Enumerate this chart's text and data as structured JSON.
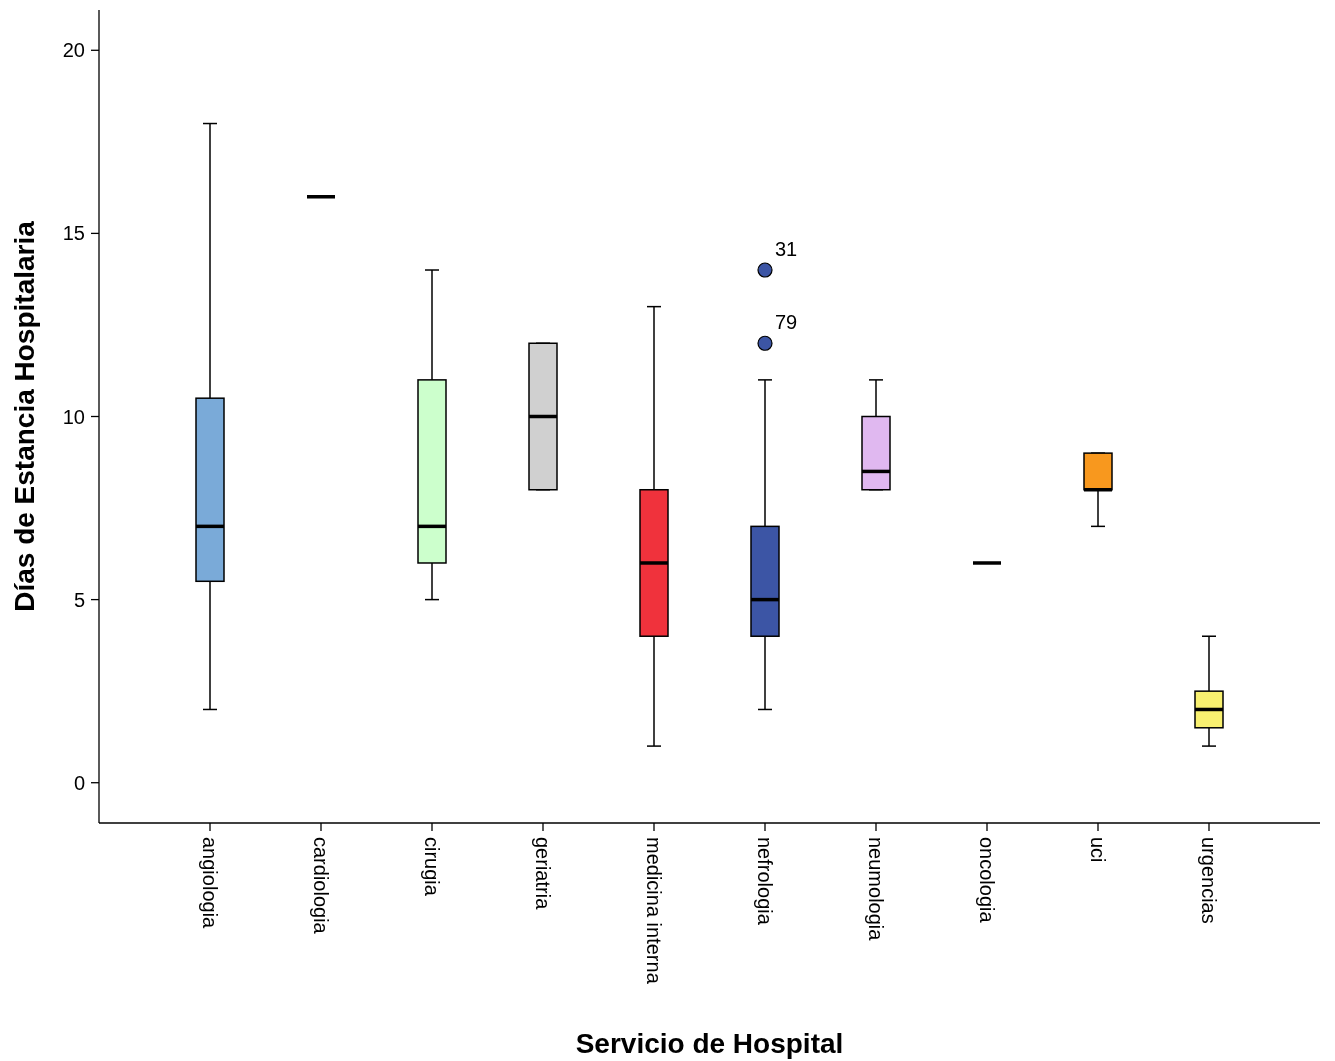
{
  "chart_data": {
    "type": "box",
    "xlabel": "Servicio de Hospital",
    "ylabel": "Días de Estancia Hospitalaria",
    "categories": [
      "angiologia",
      "cardiologia",
      "cirugia",
      "geriatria",
      "medicina interna",
      "nefrologia",
      "neumologia",
      "oncologia",
      "uci",
      "urgencias"
    ],
    "colors": [
      "#7aaad8",
      "#000000",
      "#ccffcc",
      "#d0d0d0",
      "#f0323c",
      "#3c55a5",
      "#e0b8f0",
      "#000000",
      "#f8981e",
      "#f8f070"
    ],
    "boxes": [
      {
        "low": 2,
        "q1": 5.5,
        "median": 7,
        "q3": 10.5,
        "high": 18
      },
      {
        "low": 16,
        "q1": 16,
        "median": 16,
        "q3": 16,
        "high": 16
      },
      {
        "low": 5,
        "q1": 6,
        "median": 7,
        "q3": 11,
        "high": 14
      },
      {
        "low": 8,
        "q1": 8,
        "median": 10,
        "q3": 12,
        "high": 12
      },
      {
        "low": 1,
        "q1": 4,
        "median": 6,
        "q3": 8,
        "high": 13
      },
      {
        "low": 2,
        "q1": 4,
        "median": 5,
        "q3": 7,
        "high": 11,
        "outliers": [
          14,
          12
        ]
      },
      {
        "low": 8,
        "q1": 8,
        "median": 8.5,
        "q3": 10,
        "high": 11
      },
      {
        "low": 6,
        "q1": 6,
        "median": 6,
        "q3": 6,
        "high": 6
      },
      {
        "low": 7,
        "q1": 8,
        "median": 8,
        "q3": 9,
        "high": 9
      },
      {
        "low": 1,
        "q1": 1.5,
        "median": 2,
        "q3": 2.5,
        "high": 4
      }
    ],
    "annotations": [
      "31",
      "79"
    ],
    "ylim": [
      -1.1,
      21.1
    ],
    "yticks": [
      0,
      5,
      10,
      15,
      20
    ],
    "grid": false
  }
}
